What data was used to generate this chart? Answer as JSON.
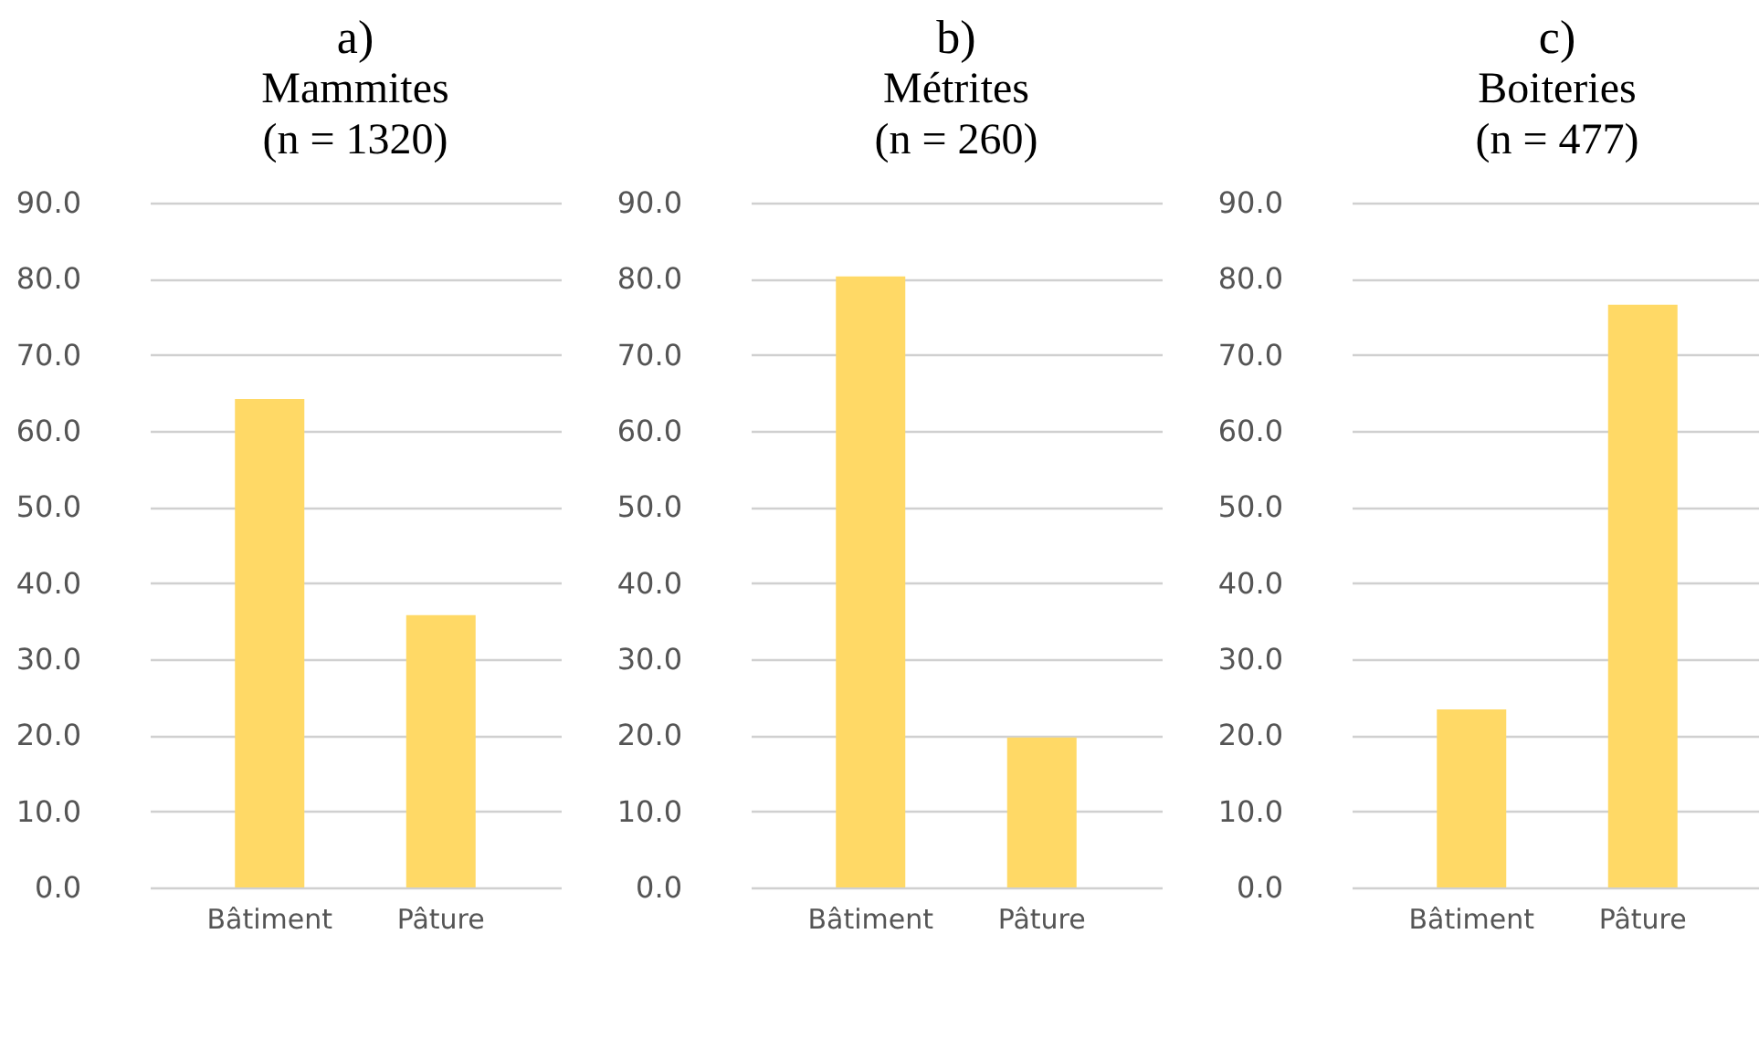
{
  "chart_data": [
    {
      "type": "bar",
      "title": "a)",
      "subtitle": "Mammites\n(n =  1320)",
      "categories": [
        "Bâtiment",
        "Pâture"
      ],
      "values": [
        64.2,
        35.8
      ],
      "color": "#ffd966",
      "ylim": [
        0,
        90
      ],
      "yticks": [
        {
          "value": 0,
          "label": "0.0"
        },
        {
          "value": 10,
          "label": "10.0"
        },
        {
          "value": 20,
          "label": "20.0"
        },
        {
          "value": 30,
          "label": "30.0"
        },
        {
          "value": 40,
          "label": "40.0"
        },
        {
          "value": 50,
          "label": "50.0"
        },
        {
          "value": 60,
          "label": "60.0"
        },
        {
          "value": 70,
          "label": "70.0"
        },
        {
          "value": 80,
          "label": "80.0"
        },
        {
          "value": 90,
          "label": "90.0"
        }
      ],
      "grid": "y"
    },
    {
      "type": "bar",
      "title": "b)",
      "subtitle": "Métrites\n(n = 260)",
      "categories": [
        "Bâtiment",
        "Pâture"
      ],
      "values": [
        80.3,
        19.7
      ],
      "color": "#ffd966",
      "ylim": [
        0,
        90
      ],
      "yticks": [
        {
          "value": 0,
          "label": "0.0"
        },
        {
          "value": 10,
          "label": "10.0"
        },
        {
          "value": 20,
          "label": "20.0"
        },
        {
          "value": 30,
          "label": "30.0"
        },
        {
          "value": 40,
          "label": "40.0"
        },
        {
          "value": 50,
          "label": "50.0"
        },
        {
          "value": 60,
          "label": "60.0"
        },
        {
          "value": 70,
          "label": "70.0"
        },
        {
          "value": 80,
          "label": "80.0"
        },
        {
          "value": 90,
          "label": "90.0"
        }
      ],
      "grid": "y"
    },
    {
      "type": "bar",
      "title": "c)",
      "subtitle": "Boiteries\n(n = 477)",
      "categories": [
        "Bâtiment",
        "Pâture"
      ],
      "values": [
        23.4,
        76.6
      ],
      "color": "#ffd966",
      "ylim": [
        0,
        90
      ],
      "yticks": [
        {
          "value": 0,
          "label": "0.0"
        },
        {
          "value": 10,
          "label": "10.0"
        },
        {
          "value": 20,
          "label": "20.0"
        },
        {
          "value": 30,
          "label": "30.0"
        },
        {
          "value": 40,
          "label": "40.0"
        },
        {
          "value": 50,
          "label": "50.0"
        },
        {
          "value": 60,
          "label": "60.0"
        },
        {
          "value": 70,
          "label": "70.0"
        },
        {
          "value": 80,
          "label": "80.0"
        },
        {
          "value": 90,
          "label": "90.0"
        }
      ],
      "grid": "y"
    }
  ]
}
